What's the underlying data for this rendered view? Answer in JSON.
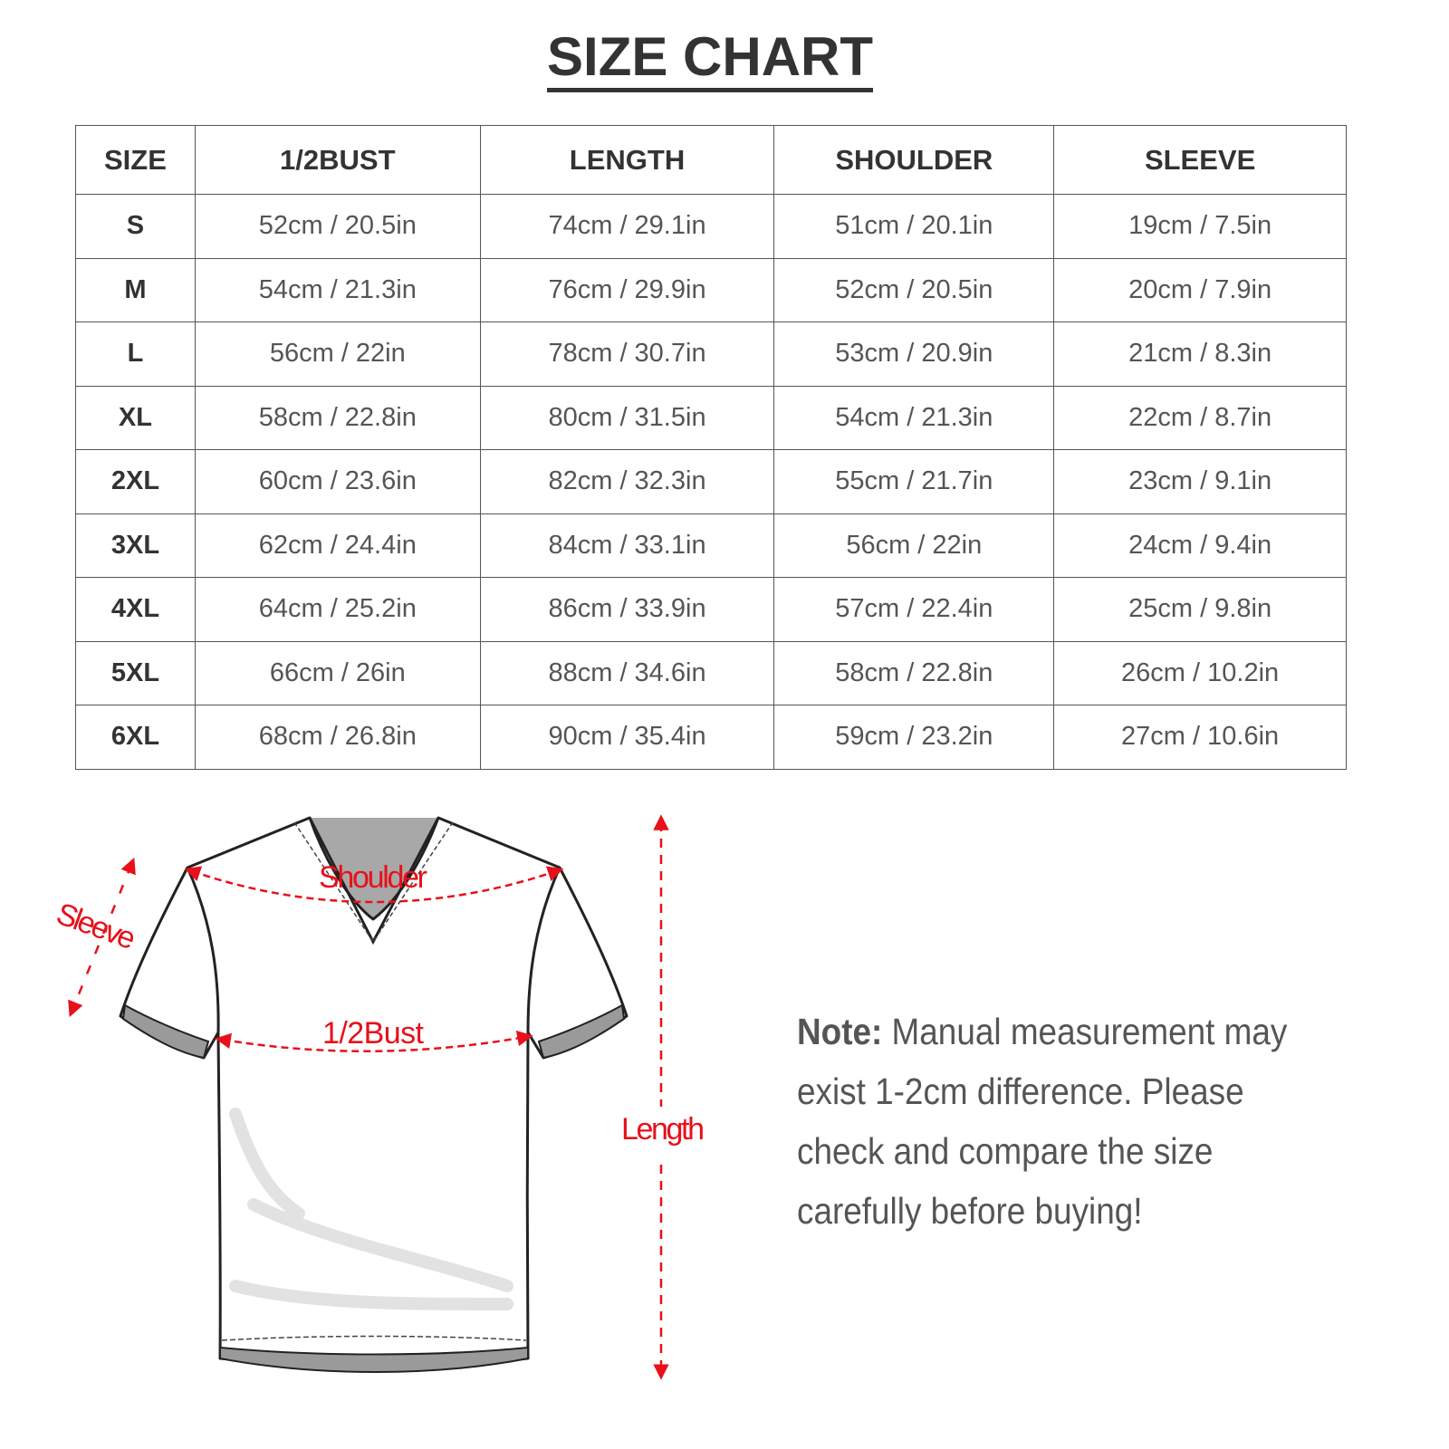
{
  "title": "SIZE CHART",
  "table": {
    "headers": [
      "SIZE",
      "1/2BUST",
      "LENGTH",
      "SHOULDER",
      "SLEEVE"
    ],
    "rows": [
      [
        "S",
        "52cm / 20.5in",
        "74cm / 29.1in",
        "51cm / 20.1in",
        "19cm / 7.5in"
      ],
      [
        "M",
        "54cm / 21.3in",
        "76cm / 29.9in",
        "52cm / 20.5in",
        "20cm / 7.9in"
      ],
      [
        "L",
        "56cm / 22in",
        "78cm / 30.7in",
        "53cm / 20.9in",
        "21cm / 8.3in"
      ],
      [
        "XL",
        "58cm / 22.8in",
        "80cm / 31.5in",
        "54cm / 21.3in",
        "22cm / 8.7in"
      ],
      [
        "2XL",
        "60cm / 23.6in",
        "82cm / 32.3in",
        "55cm / 21.7in",
        "23cm / 9.1in"
      ],
      [
        "3XL",
        "62cm / 24.4in",
        "84cm / 33.1in",
        "56cm / 22in",
        "24cm / 9.4in"
      ],
      [
        "4XL",
        "64cm / 25.2in",
        "86cm / 33.9in",
        "57cm / 22.4in",
        "25cm / 9.8in"
      ],
      [
        "5XL",
        "66cm / 26in",
        "88cm / 34.6in",
        "58cm / 22.8in",
        "26cm / 10.2in"
      ],
      [
        "6XL",
        "68cm / 26.8in",
        "90cm / 35.4in",
        "59cm / 23.2in",
        "27cm / 10.6in"
      ]
    ]
  },
  "diagram": {
    "labels": {
      "shoulder": "Shoulder",
      "sleeve": "Sleeve",
      "bust": "1/2Bust",
      "length": "Length"
    },
    "accent": "#e8101a"
  },
  "note": {
    "label": "Note:",
    "text": " Manual measurement may exist 1-2cm difference. Please check and compare the size carefully before buying!"
  }
}
